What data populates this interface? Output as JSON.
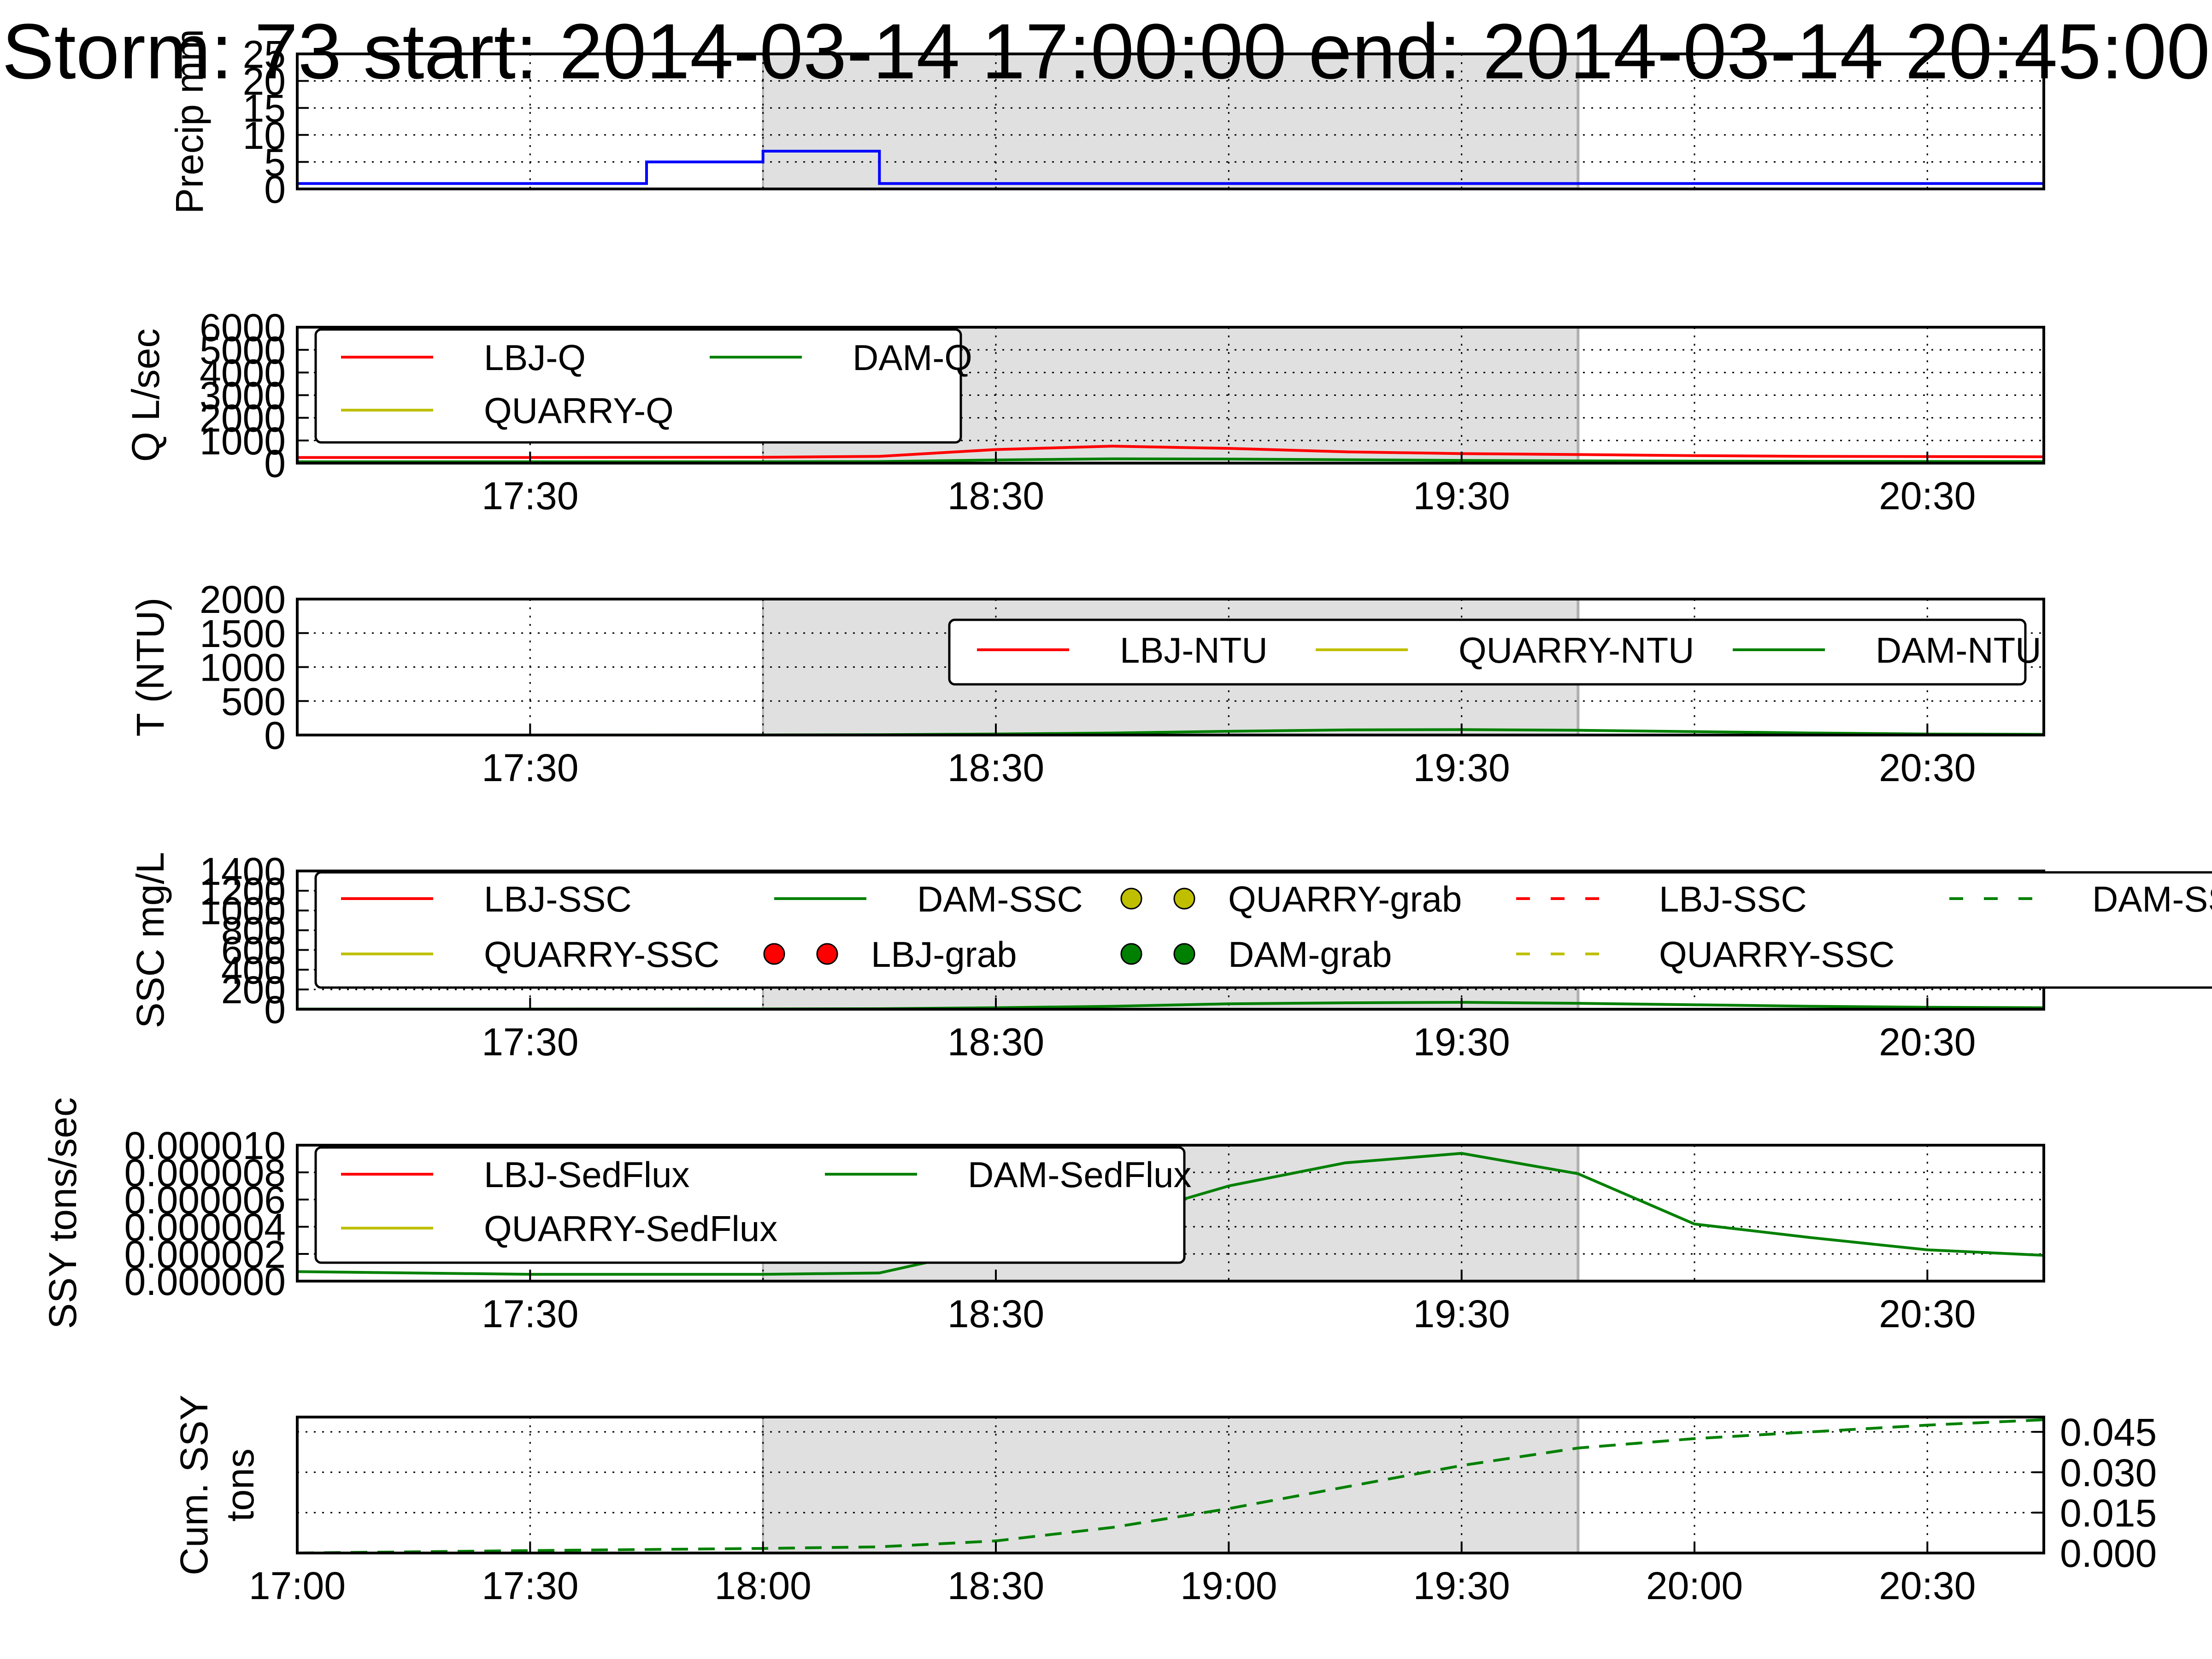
{
  "figure": {
    "title": "Storm: 73 start: 2014-03-14 17:00:00 end: 2014-03-14 20:45:00",
    "shade_color": "#e0e0e0",
    "shade_edge_color": "#b0b0b0"
  },
  "chart_data": [
    {
      "type": "line",
      "panel": "precip",
      "ylabel": "Precip mm",
      "ylim": [
        0,
        25
      ],
      "yticks": [
        "0",
        "5",
        "10",
        "15",
        "20",
        "25"
      ],
      "grid": true,
      "shaded_range": [
        "18:00",
        "19:45"
      ],
      "series": [
        {
          "color": "#0000ff",
          "step": true,
          "x": [
            "17:00",
            "17:45",
            "18:00",
            "18:15",
            "18:30",
            "18:45",
            "19:00",
            "19:15",
            "19:30",
            "19:45",
            "20:00",
            "20:15",
            "20:30",
            "20:45"
          ],
          "values": [
            1,
            5,
            7,
            1,
            1,
            1,
            1,
            1,
            1,
            1,
            1,
            1,
            1,
            1
          ]
        }
      ]
    },
    {
      "type": "line",
      "panel": "discharge",
      "ylabel": "Q L/sec",
      "ylim": [
        0,
        6000
      ],
      "yticks": [
        "0",
        "1000",
        "2000",
        "3000",
        "4000",
        "5000",
        "6000"
      ],
      "xticks": [
        "17:30",
        "18:30",
        "19:30",
        "20:30"
      ],
      "grid": true,
      "legend_placement": "top-left",
      "legend_entries": [
        "LBJ-Q",
        "QUARRY-Q",
        "DAM-Q"
      ],
      "series": [
        {
          "name": "LBJ-Q",
          "color": "#ff0000",
          "x": [
            "17:00",
            "17:30",
            "18:00",
            "18:15",
            "18:30",
            "18:45",
            "19:00",
            "19:15",
            "19:30",
            "19:45",
            "20:00",
            "20:15",
            "20:30",
            "20:45"
          ],
          "values": [
            250,
            250,
            260,
            300,
            600,
            750,
            650,
            500,
            420,
            380,
            330,
            300,
            290,
            280
          ]
        },
        {
          "name": "QUARRY-Q",
          "color": "#bfbf00",
          "x": [],
          "values": []
        },
        {
          "name": "DAM-Q",
          "color": "#008000",
          "x": [
            "17:00",
            "17:30",
            "18:00",
            "18:15",
            "18:30",
            "18:45",
            "19:00",
            "19:15",
            "19:30",
            "19:45",
            "20:00",
            "20:15",
            "20:30",
            "20:45"
          ],
          "values": [
            60,
            60,
            60,
            70,
            140,
            190,
            180,
            150,
            120,
            100,
            90,
            80,
            75,
            70
          ]
        }
      ]
    },
    {
      "type": "line",
      "panel": "turbidity",
      "ylabel": "T (NTU)",
      "ylim": [
        0,
        2000
      ],
      "yticks": [
        "0",
        "500",
        "1000",
        "1500",
        "2000"
      ],
      "xticks": [
        "17:30",
        "18:30",
        "19:30",
        "20:30"
      ],
      "grid": true,
      "legend_placement": "top-right",
      "legend_entries": [
        "LBJ-NTU",
        "QUARRY-NTU",
        "DAM-NTU"
      ],
      "series": [
        {
          "name": "LBJ-NTU",
          "color": "#ff0000",
          "x": [],
          "values": []
        },
        {
          "name": "QUARRY-NTU",
          "color": "#bfbf00",
          "x": [],
          "values": []
        },
        {
          "name": "DAM-NTU",
          "color": "#008000",
          "x": [
            "17:00",
            "17:30",
            "18:00",
            "18:15",
            "18:30",
            "18:45",
            "19:00",
            "19:15",
            "19:30",
            "19:45",
            "20:00",
            "20:15",
            "20:30",
            "20:45"
          ],
          "values": [
            0,
            0,
            2,
            5,
            15,
            30,
            55,
            75,
            80,
            70,
            50,
            30,
            15,
            10
          ]
        }
      ]
    },
    {
      "type": "line",
      "panel": "ssc",
      "ylabel": "SSC mg/L",
      "ylim": [
        0,
        1400
      ],
      "yticks": [
        "0",
        "200",
        "400",
        "600",
        "800",
        "1000",
        "1200",
        "1400"
      ],
      "xticks": [
        "17:30",
        "18:30",
        "19:30",
        "20:30"
      ],
      "grid": true,
      "legend_placement": "top",
      "legend_entries": [
        "LBJ-SSC",
        "QUARRY-SSC",
        "DAM-SSC",
        "LBJ-grab",
        "QUARRY-grab",
        "DAM-grab",
        "LBJ-SSC",
        "QUARRY-SSC",
        "DAM-SSC"
      ],
      "series": [
        {
          "name": "LBJ-SSC",
          "color": "#ff0000",
          "x": [],
          "values": []
        },
        {
          "name": "QUARRY-SSC",
          "color": "#bfbf00",
          "x": [],
          "values": []
        },
        {
          "name": "DAM-SSC",
          "color": "#008000",
          "x": [
            "17:00",
            "17:30",
            "18:00",
            "18:15",
            "18:30",
            "18:45",
            "19:00",
            "19:15",
            "19:30",
            "19:45",
            "20:00",
            "20:15",
            "20:30",
            "20:45"
          ],
          "values": [
            2,
            2,
            3,
            5,
            15,
            30,
            55,
            65,
            70,
            60,
            45,
            30,
            20,
            15
          ]
        }
      ]
    },
    {
      "type": "line",
      "panel": "sedflux",
      "ylabel": "SSY tons/sec",
      "ylim": [
        0,
        1e-05
      ],
      "yticks": [
        "0.000000",
        "0.000002",
        "0.000004",
        "0.000006",
        "0.000008",
        "0.000010"
      ],
      "xticks": [
        "17:30",
        "18:30",
        "19:30",
        "20:30"
      ],
      "grid": true,
      "legend_placement": "top-left",
      "legend_entries": [
        "LBJ-SedFlux",
        "QUARRY-SedFlux",
        "DAM-SedFlux"
      ],
      "series": [
        {
          "name": "LBJ-SedFlux",
          "color": "#ff0000",
          "x": [],
          "values": []
        },
        {
          "name": "QUARRY-SedFlux",
          "color": "#bfbf00",
          "x": [],
          "values": []
        },
        {
          "name": "DAM-SedFlux",
          "color": "#008000",
          "x": [
            "17:00",
            "17:30",
            "18:00",
            "18:15",
            "18:30",
            "18:45",
            "19:00",
            "19:15",
            "19:30",
            "19:45",
            "20:00",
            "20:15",
            "20:30",
            "20:45"
          ],
          "values": [
            7e-07,
            5e-07,
            5e-07,
            6e-07,
            2.5e-06,
            4.5e-06,
            7e-06,
            8.7e-06,
            9.4e-06,
            7.9e-06,
            4.2e-06,
            3.2e-06,
            2.3e-06,
            1.9e-06
          ]
        }
      ]
    },
    {
      "type": "line",
      "panel": "cumulative",
      "ylabel": "Cum. SSY tons",
      "ylim": [
        0,
        0.0505
      ],
      "yticks": [
        "0.000",
        "0.015",
        "0.030",
        "0.045"
      ],
      "xticks": [
        "17:00",
        "17:30",
        "18:00",
        "18:30",
        "19:00",
        "19:30",
        "20:00",
        "20:30"
      ],
      "grid": true,
      "series": [
        {
          "color": "#008000",
          "dashed": true,
          "x": [
            "17:00",
            "17:30",
            "18:00",
            "18:15",
            "18:30",
            "18:45",
            "19:00",
            "19:15",
            "19:30",
            "19:45",
            "20:00",
            "20:15",
            "20:30",
            "20:45"
          ],
          "values": [
            0.0,
            0.0009,
            0.0017,
            0.0023,
            0.0045,
            0.0095,
            0.0165,
            0.0245,
            0.0325,
            0.039,
            0.0425,
            0.045,
            0.0475,
            0.0495
          ]
        }
      ]
    }
  ]
}
